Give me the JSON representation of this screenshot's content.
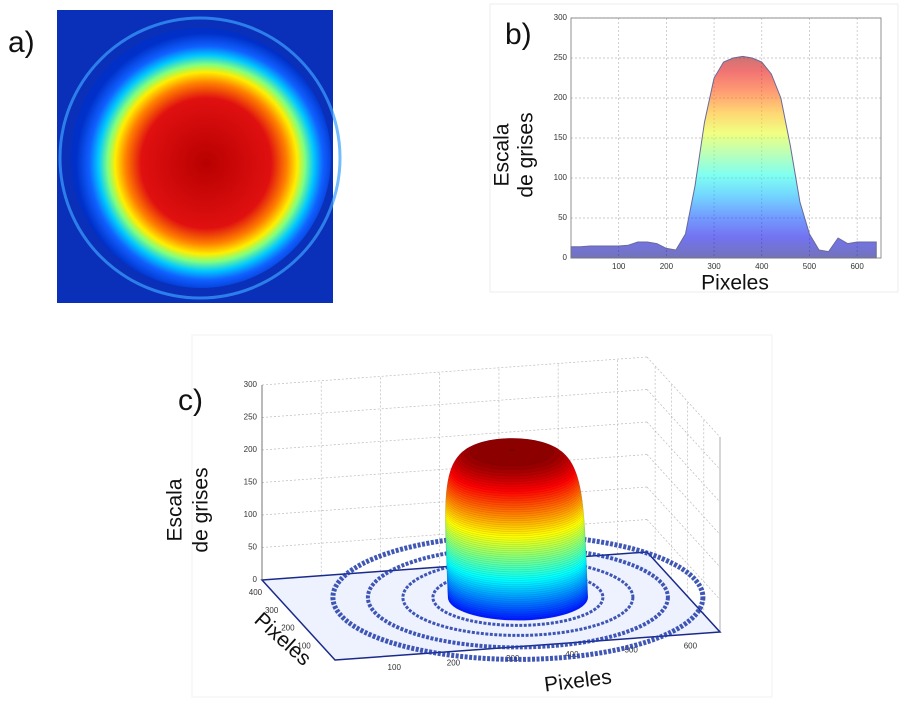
{
  "chart_data": [
    {
      "type": "image",
      "label": "a)"
    },
    {
      "type": "area",
      "label": "b)",
      "xlabel": "Pixeles",
      "ylabel": [
        "Escala",
        "de grises"
      ],
      "x": [
        0,
        20,
        40,
        60,
        80,
        100,
        120,
        140,
        160,
        180,
        200,
        220,
        240,
        260,
        280,
        300,
        320,
        340,
        360,
        380,
        400,
        420,
        440,
        460,
        480,
        500,
        520,
        540,
        560,
        580,
        600,
        620,
        640
      ],
      "values": [
        14,
        14,
        15,
        15,
        15,
        15,
        16,
        20,
        20,
        18,
        12,
        10,
        30,
        90,
        170,
        225,
        245,
        250,
        252,
        250,
        245,
        230,
        200,
        140,
        70,
        30,
        10,
        8,
        25,
        18,
        20,
        20,
        20
      ],
      "xlim": [
        0,
        650
      ],
      "ylim": [
        0,
        300
      ],
      "xticks": [
        100,
        200,
        300,
        400,
        500,
        600
      ],
      "yticks": [
        0,
        50,
        100,
        150,
        200,
        250,
        300
      ],
      "grid": true
    },
    {
      "type": "surface",
      "label": "c)",
      "xlabel": "Pixeles",
      "ylabel": "Pixeles",
      "zlabel": [
        "Escala",
        "de grises"
      ],
      "xlim": [
        0,
        650
      ],
      "ylim": [
        0,
        450
      ],
      "zlim": [
        0,
        300
      ],
      "xticks": [
        100,
        200,
        300,
        400,
        500,
        600
      ],
      "yticks": [
        100,
        200,
        300,
        400
      ],
      "zticks": [
        0,
        50,
        100,
        150,
        200,
        250,
        300
      ],
      "grid": true
    }
  ]
}
